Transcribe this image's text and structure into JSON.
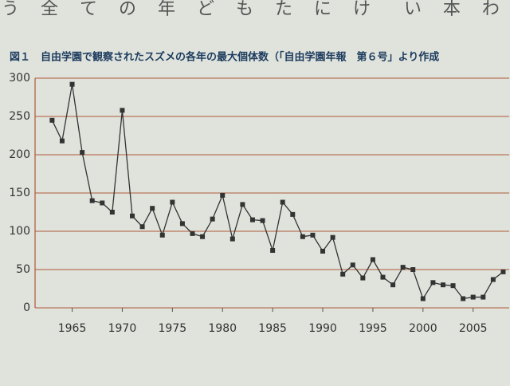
{
  "page_text": "う 全 て の 年 ど も た に け　い 本 わ 日",
  "chart_data": {
    "type": "line",
    "title": "図１　自由学園で観察されたスズメの各年の最大個体数（「自由学園年報　第６号」より作成",
    "x": [
      1963,
      1964,
      1965,
      1966,
      1967,
      1968,
      1969,
      1970,
      1971,
      1972,
      1973,
      1974,
      1975,
      1976,
      1977,
      1978,
      1979,
      1980,
      1981,
      1982,
      1983,
      1984,
      1985,
      1986,
      1987,
      1988,
      1989,
      1990,
      1991,
      1992,
      1993,
      1994,
      1995,
      1996,
      1997,
      1998,
      1999,
      2000,
      2001,
      2002,
      2003,
      2004,
      2005,
      2006,
      2007,
      2008
    ],
    "series": [
      {
        "name": "スズメ",
        "color": "#333333",
        "values": [
          245,
          218,
          292,
          203,
          140,
          137,
          125,
          258,
          120,
          106,
          130,
          95,
          138,
          110,
          97,
          93,
          116,
          147,
          90,
          135,
          115,
          114,
          75,
          138,
          122,
          93,
          95,
          74,
          92,
          44,
          56,
          39,
          63,
          40,
          30,
          53,
          50,
          12,
          33,
          30,
          29,
          12,
          14,
          14,
          37,
          47
        ]
      }
    ],
    "xlim": [
      1961.3,
      2008.6
    ],
    "xticks": [
      1965,
      1970,
      1975,
      1980,
      1985,
      1990,
      1995,
      2000,
      2005
    ],
    "ylim": [
      0,
      300
    ],
    "yticks": [
      0,
      50,
      100,
      150,
      200,
      250,
      300
    ],
    "grid": true,
    "grid_color": "#b0583a"
  }
}
